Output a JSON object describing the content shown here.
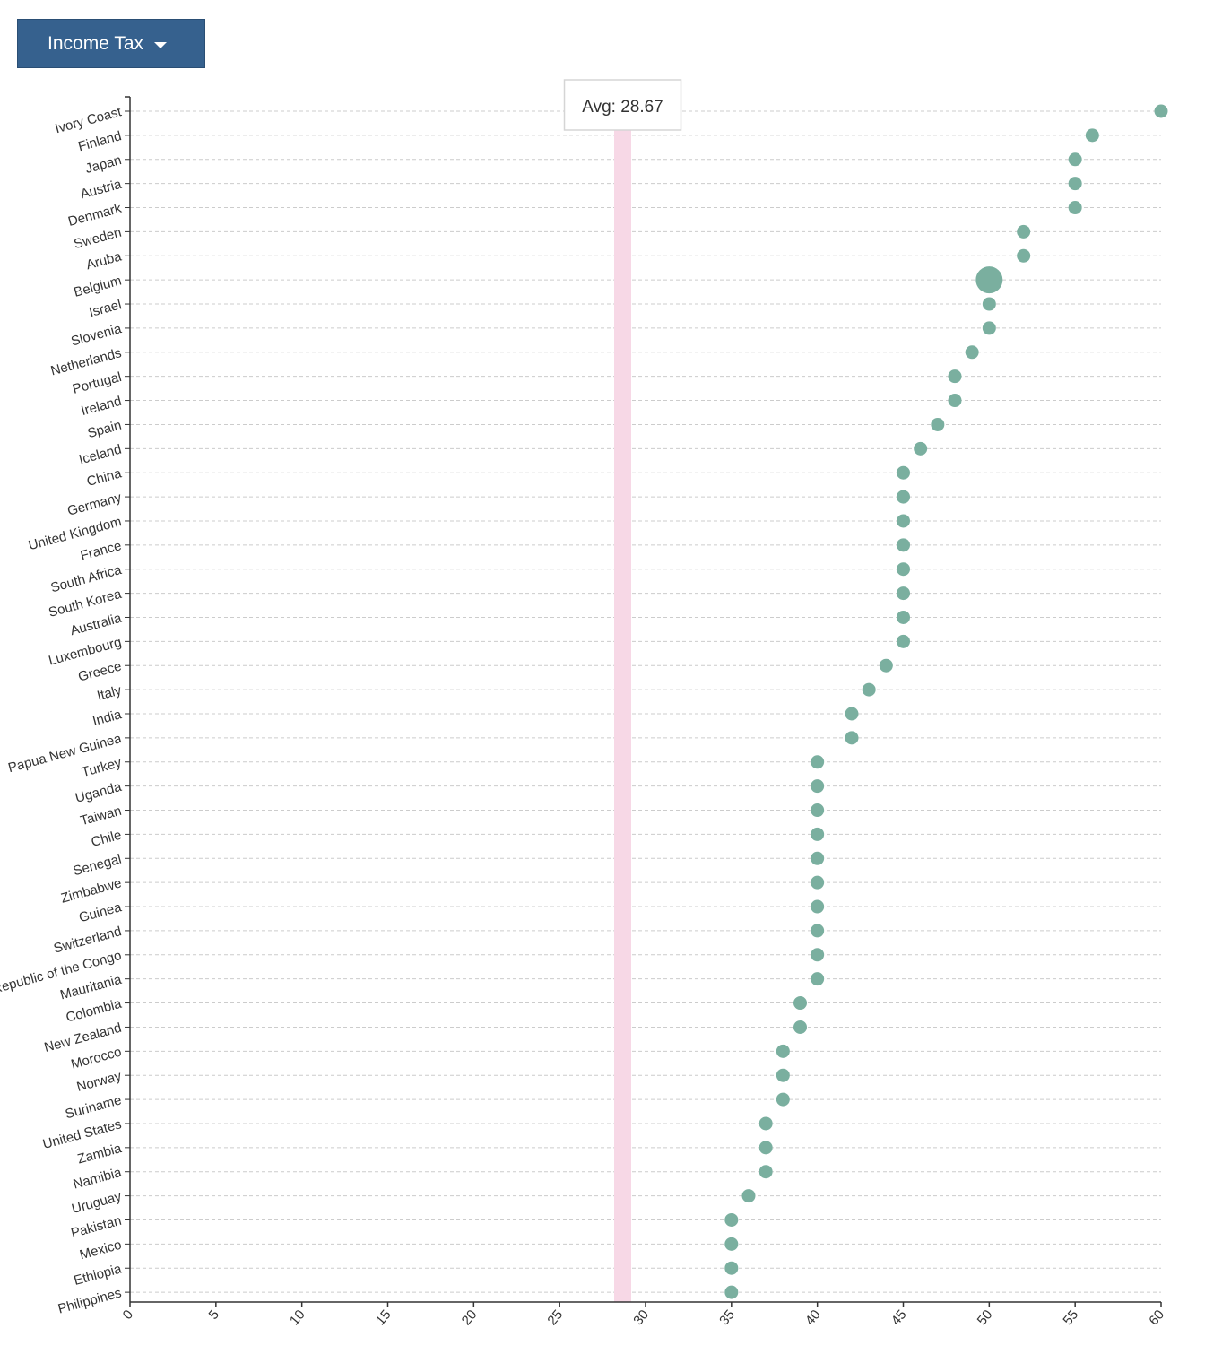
{
  "dropdown": {
    "label": "Income Tax",
    "icon": "caret-down-icon"
  },
  "colors": {
    "point": "#7aaf9f",
    "avg_band": "#f7d8e6",
    "axis": "#333333",
    "grid": "#cccccc",
    "button": "#36618e"
  },
  "chart_data": {
    "type": "scatter",
    "orientation": "horizontal",
    "title": "",
    "xlabel": "",
    "ylabel": "",
    "xlim": [
      0,
      60
    ],
    "xticks": [
      0,
      5,
      10,
      15,
      20,
      25,
      30,
      35,
      40,
      45,
      50,
      55,
      60
    ],
    "grid": "horizontal-dashed",
    "average": {
      "value": 28.67,
      "label": "Avg: 28.67"
    },
    "highlighted": "Belgium",
    "categories": [
      "Ivory Coast",
      "Finland",
      "Japan",
      "Austria",
      "Denmark",
      "Sweden",
      "Aruba",
      "Belgium",
      "Israel",
      "Slovenia",
      "Netherlands",
      "Portugal",
      "Ireland",
      "Spain",
      "Iceland",
      "China",
      "Germany",
      "United Kingdom",
      "France",
      "South Africa",
      "South Korea",
      "Australia",
      "Luxembourg",
      "Greece",
      "Italy",
      "India",
      "Papua New Guinea",
      "Turkey",
      "Uganda",
      "Taiwan",
      "Chile",
      "Senegal",
      "Zimbabwe",
      "Guinea",
      "Switzerland",
      "Republic of the Congo",
      "Mauritania",
      "Colombia",
      "New Zealand",
      "Morocco",
      "Norway",
      "Suriname",
      "United States",
      "Zambia",
      "Namibia",
      "Uruguay",
      "Pakistan",
      "Mexico",
      "Ethiopia",
      "Philippines"
    ],
    "values": [
      60,
      56,
      55,
      55,
      55,
      52,
      52,
      50,
      50,
      50,
      49,
      48,
      48,
      47,
      46,
      45,
      45,
      45,
      45,
      45,
      45,
      45,
      45,
      44,
      43,
      42,
      42,
      40,
      40,
      40,
      40,
      40,
      40,
      40,
      40,
      40,
      40,
      39,
      39,
      38,
      38,
      38,
      37,
      37,
      37,
      36,
      35,
      35,
      35,
      35
    ]
  }
}
